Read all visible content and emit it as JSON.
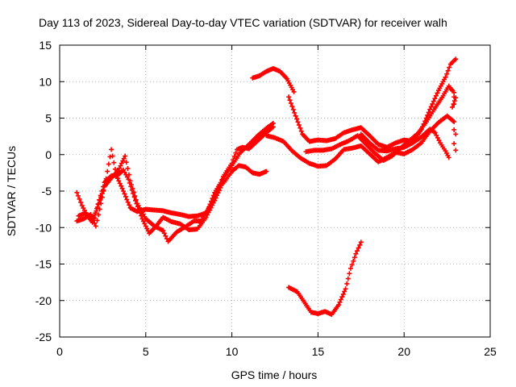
{
  "chart_data": {
    "type": "scatter",
    "title": "Day 113 of 2023, Sidereal Day-to-day VTEC variation (SDTVAR) for receiver walh",
    "xlabel": "GPS time / hours",
    "ylabel": "SDTVAR / TECUs",
    "xlim": [
      0,
      25
    ],
    "ylim": [
      -25,
      15
    ],
    "xticks": [
      0,
      5,
      10,
      15,
      20,
      25
    ],
    "yticks": [
      -25,
      -20,
      -15,
      -10,
      -5,
      0,
      5,
      10,
      15
    ],
    "grid": true,
    "legend": "none",
    "marker": "plus",
    "color": "#ff0000",
    "series": [
      {
        "points": [
          [
            1.0,
            -5.2
          ],
          [
            1.3,
            -7.0
          ],
          [
            1.6,
            -8.3
          ],
          [
            2.0,
            -8.6
          ],
          [
            2.3,
            -6.2
          ],
          [
            2.6,
            -3.8
          ],
          [
            3.0,
            -2.9
          ],
          [
            3.4,
            -2.8
          ],
          [
            3.7,
            -2.1
          ],
          [
            4.0,
            -3.4
          ],
          [
            4.4,
            -6.3
          ],
          [
            4.8,
            -8.8
          ],
          [
            5.2,
            -10.8
          ],
          [
            5.6,
            -9.8
          ],
          [
            6.0,
            -8.6
          ],
          [
            6.5,
            -9.2
          ],
          [
            7.0,
            -9.5
          ],
          [
            7.5,
            -10.3
          ],
          [
            8.0,
            -10.2
          ],
          [
            8.5,
            -8.6
          ],
          [
            9.0,
            -6.3
          ],
          [
            9.4,
            -4.2
          ],
          [
            9.7,
            -3.3
          ],
          [
            10.0,
            -2.3
          ],
          [
            10.4,
            -1.5
          ],
          [
            10.8,
            -1.7
          ],
          [
            11.2,
            -2.5
          ],
          [
            11.6,
            -2.7
          ],
          [
            12.0,
            -2.3
          ]
        ]
      },
      {
        "points": [
          [
            1.1,
            -8.4
          ],
          [
            1.5,
            -8.0
          ],
          [
            1.9,
            -9.3
          ],
          [
            2.2,
            -7.2
          ],
          [
            2.6,
            -4.4
          ],
          [
            3.0,
            -3.2
          ],
          [
            3.4,
            -2.2
          ],
          [
            3.8,
            -0.2
          ],
          [
            4.1,
            -3.6
          ],
          [
            4.5,
            -6.7
          ],
          [
            5.0,
            -8.8
          ],
          [
            5.5,
            -9.8
          ],
          [
            6.0,
            -10.4
          ],
          [
            6.3,
            -11.9
          ],
          [
            6.8,
            -10.6
          ],
          [
            7.3,
            -9.9
          ],
          [
            7.8,
            -9.1
          ],
          [
            8.2,
            -9.1
          ],
          [
            8.6,
            -7.6
          ],
          [
            9.0,
            -5.2
          ],
          [
            9.5,
            -3.3
          ],
          [
            10.0,
            -1.5
          ],
          [
            10.5,
            0.3
          ],
          [
            11.0,
            1.4
          ],
          [
            11.5,
            2.6
          ],
          [
            12.0,
            3.6
          ],
          [
            12.4,
            4.3
          ]
        ]
      },
      {
        "points": [
          [
            1.0,
            -9.1
          ],
          [
            1.4,
            -8.8
          ],
          [
            1.8,
            -8.2
          ],
          [
            2.1,
            -9.8
          ],
          [
            2.4,
            -6.7
          ],
          [
            2.7,
            -3.3
          ],
          [
            3.0,
            0.7
          ],
          [
            3.3,
            -2.9
          ],
          [
            3.7,
            -5.0
          ],
          [
            4.1,
            -7.3
          ],
          [
            4.5,
            -7.8
          ],
          [
            5.0,
            -7.5
          ],
          [
            5.5,
            -7.6
          ],
          [
            6.0,
            -7.7
          ],
          [
            6.5,
            -8.0
          ],
          [
            7.0,
            -8.2
          ],
          [
            7.5,
            -8.5
          ],
          [
            8.0,
            -8.4
          ],
          [
            8.5,
            -8.0
          ],
          [
            9.0,
            -5.9
          ],
          [
            9.5,
            -3.0
          ],
          [
            10.0,
            -1.2
          ],
          [
            10.3,
            0.7
          ],
          [
            10.6,
            1.0
          ],
          [
            11.0,
            0.8
          ],
          [
            11.5,
            1.9
          ],
          [
            12.0,
            3.0
          ],
          [
            12.4,
            3.8
          ]
        ]
      },
      {
        "points": [
          [
            11.2,
            10.5
          ],
          [
            11.6,
            10.8
          ],
          [
            12.0,
            11.4
          ],
          [
            12.4,
            11.8
          ],
          [
            12.8,
            11.4
          ],
          [
            13.2,
            10.4
          ],
          [
            13.6,
            8.6
          ]
        ]
      },
      {
        "points": [
          [
            13.3,
            -18.2
          ],
          [
            13.8,
            -18.8
          ],
          [
            14.2,
            -20.2
          ],
          [
            14.6,
            -21.6
          ],
          [
            15.0,
            -21.8
          ],
          [
            15.4,
            -21.5
          ],
          [
            15.8,
            -21.9
          ],
          [
            16.2,
            -20.6
          ],
          [
            16.6,
            -18.4
          ],
          [
            16.9,
            -15.6
          ],
          [
            17.2,
            -13.6
          ],
          [
            17.5,
            -12.0
          ]
        ]
      },
      {
        "points": [
          [
            12.0,
            2.6
          ],
          [
            12.5,
            2.3
          ],
          [
            13.0,
            1.8
          ],
          [
            13.5,
            0.5
          ],
          [
            14.0,
            -0.5
          ],
          [
            14.5,
            -1.2
          ],
          [
            15.0,
            -1.6
          ],
          [
            15.5,
            -1.5
          ],
          [
            16.0,
            -0.6
          ],
          [
            16.5,
            0.7
          ],
          [
            17.0,
            0.9
          ],
          [
            17.5,
            1.2
          ],
          [
            18.0,
            0.1
          ],
          [
            18.5,
            -1.0
          ],
          [
            19.0,
            -0.4
          ],
          [
            19.5,
            0.3
          ],
          [
            20.0,
            0.1
          ],
          [
            20.5,
            0.7
          ],
          [
            21.0,
            1.6
          ],
          [
            21.5,
            3.2
          ],
          [
            22.0,
            4.4
          ],
          [
            22.5,
            5.3
          ],
          [
            22.9,
            4.5
          ]
        ]
      },
      {
        "points": [
          [
            13.3,
            7.9
          ],
          [
            13.7,
            5.3
          ],
          [
            14.1,
            2.8
          ],
          [
            14.5,
            1.8
          ],
          [
            15.0,
            2.0
          ],
          [
            15.5,
            1.9
          ],
          [
            16.0,
            2.2
          ],
          [
            16.5,
            3.0
          ],
          [
            17.0,
            3.4
          ],
          [
            17.5,
            3.7
          ],
          [
            18.0,
            2.6
          ],
          [
            18.5,
            1.4
          ],
          [
            19.0,
            1.0
          ],
          [
            19.5,
            1.6
          ],
          [
            20.0,
            2.0
          ],
          [
            20.5,
            1.8
          ],
          [
            21.0,
            3.4
          ],
          [
            21.5,
            6.2
          ],
          [
            22.0,
            8.8
          ],
          [
            22.4,
            10.6
          ],
          [
            22.7,
            12.4
          ],
          [
            23.0,
            13.1
          ]
        ]
      },
      {
        "points": [
          [
            14.3,
            0.4
          ],
          [
            14.8,
            0.6
          ],
          [
            15.3,
            0.6
          ],
          [
            15.8,
            0.8
          ],
          [
            16.3,
            1.4
          ],
          [
            16.8,
            1.9
          ],
          [
            17.3,
            2.6
          ],
          [
            17.8,
            1.4
          ],
          [
            18.3,
            0.2
          ],
          [
            18.8,
            -0.8
          ],
          [
            19.3,
            -0.2
          ],
          [
            19.8,
            0.9
          ],
          [
            20.3,
            1.9
          ],
          [
            20.8,
            2.9
          ],
          [
            21.3,
            4.5
          ],
          [
            21.8,
            6.4
          ],
          [
            22.2,
            7.8
          ],
          [
            22.6,
            9.4
          ],
          [
            22.9,
            8.5
          ]
        ]
      },
      {
        "points": [
          [
            17.5,
            2.8
          ],
          [
            18.0,
            1.6
          ],
          [
            18.5,
            0.6
          ],
          [
            19.0,
            0.5
          ],
          [
            19.5,
            0.8
          ],
          [
            20.0,
            1.0
          ],
          [
            20.5,
            1.6
          ],
          [
            21.0,
            2.4
          ],
          [
            21.5,
            3.5
          ],
          [
            21.8,
            3.0
          ],
          [
            22.1,
            1.6
          ],
          [
            22.4,
            0.5
          ],
          [
            22.6,
            -0.4
          ]
        ]
      },
      {
        "points": [
          [
            22.9,
            3.4
          ],
          [
            23.0,
            2.8
          ],
          [
            22.9,
            1.5
          ],
          [
            23.0,
            0.6
          ]
        ]
      },
      {
        "points": [
          [
            22.8,
            8.8
          ],
          [
            22.9,
            7.9
          ],
          [
            22.9,
            6.9
          ],
          [
            23.0,
            7.8
          ],
          [
            22.8,
            6.5
          ]
        ]
      }
    ]
  }
}
